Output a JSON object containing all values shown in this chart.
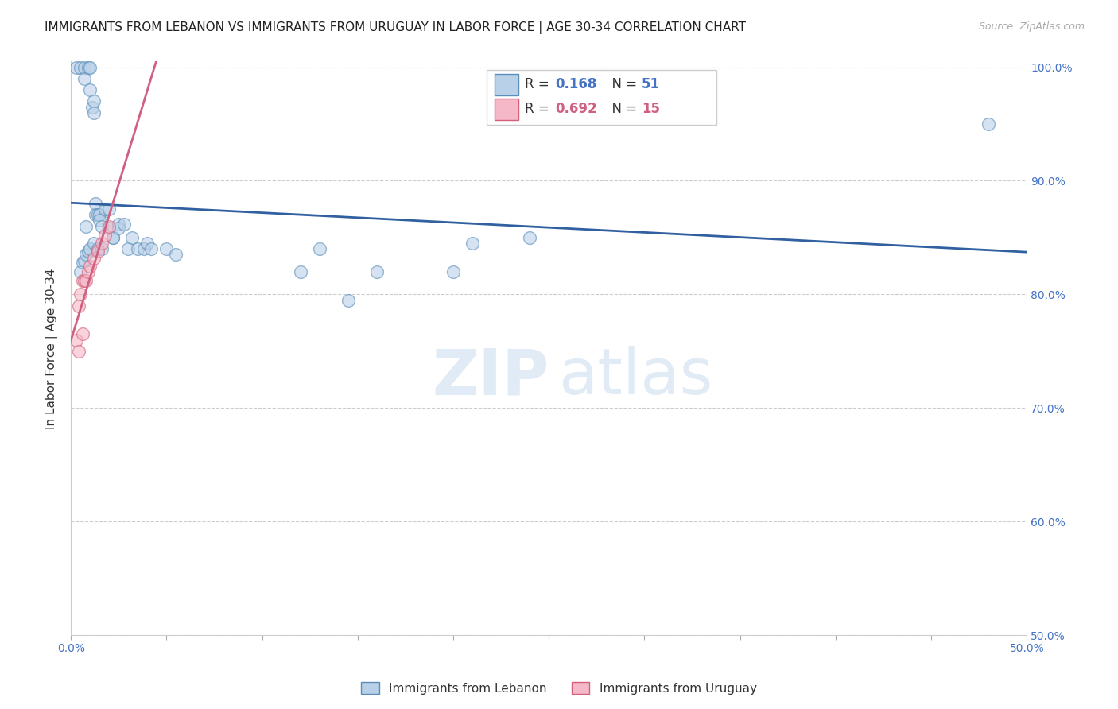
{
  "title": "IMMIGRANTS FROM LEBANON VS IMMIGRANTS FROM URUGUAY IN LABOR FORCE | AGE 30-34 CORRELATION CHART",
  "source": "Source: ZipAtlas.com",
  "ylabel": "In Labor Force | Age 30-34",
  "xlim": [
    0.0,
    0.5
  ],
  "ylim": [
    0.5,
    1.005
  ],
  "xticks": [
    0.0,
    0.05,
    0.1,
    0.15,
    0.2,
    0.25,
    0.3,
    0.35,
    0.4,
    0.45,
    0.5
  ],
  "xticklabels": [
    "0.0%",
    "",
    "",
    "",
    "",
    "",
    "",
    "",
    "",
    "",
    "50.0%"
  ],
  "yticks": [
    0.5,
    0.6,
    0.7,
    0.8,
    0.9,
    1.0
  ],
  "yticklabels": [
    "50.0%",
    "60.0%",
    "70.0%",
    "80.0%",
    "90.0%",
    "100.0%"
  ],
  "right_ytick_color": "#4472c4",
  "lebanon_color": "#b8d0e8",
  "lebanon_edge": "#5b8db8",
  "uruguay_color": "#f5b8c8",
  "uruguay_edge": "#d4607a",
  "lebanon_line_color": "#3060a0",
  "uruguay_line_color": "#d06080",
  "grid_color": "#cccccc",
  "background_color": "#ffffff",
  "title_fontsize": 11,
  "axis_label_fontsize": 11,
  "tick_fontsize": 10,
  "marker_size": 130,
  "marker_alpha": 0.6,
  "lebanon_x": [
    0.003,
    0.005,
    0.007,
    0.007,
    0.009,
    0.01,
    0.01,
    0.011,
    0.012,
    0.012,
    0.013,
    0.013,
    0.014,
    0.015,
    0.015,
    0.016,
    0.018,
    0.02,
    0.02,
    0.022,
    0.022,
    0.025,
    0.025,
    0.028,
    0.03,
    0.032,
    0.035,
    0.038,
    0.04,
    0.042,
    0.05,
    0.055,
    0.12,
    0.13,
    0.145,
    0.16,
    0.2,
    0.21,
    0.24,
    0.005,
    0.006,
    0.007,
    0.008,
    0.009,
    0.01,
    0.012,
    0.014,
    0.016,
    0.008,
    0.48
  ],
  "lebanon_y": [
    1.0,
    1.0,
    1.0,
    0.99,
    1.0,
    1.0,
    0.98,
    0.965,
    0.97,
    0.96,
    0.88,
    0.87,
    0.87,
    0.87,
    0.865,
    0.86,
    0.875,
    0.875,
    0.858,
    0.85,
    0.85,
    0.862,
    0.858,
    0.862,
    0.84,
    0.85,
    0.84,
    0.84,
    0.845,
    0.84,
    0.84,
    0.835,
    0.82,
    0.84,
    0.795,
    0.82,
    0.82,
    0.845,
    0.85,
    0.82,
    0.828,
    0.83,
    0.835,
    0.838,
    0.84,
    0.845,
    0.84,
    0.84,
    0.86,
    0.95
  ],
  "uruguay_x": [
    0.003,
    0.004,
    0.005,
    0.006,
    0.007,
    0.008,
    0.009,
    0.01,
    0.012,
    0.014,
    0.016,
    0.018,
    0.02,
    0.004,
    0.006
  ],
  "uruguay_y": [
    0.76,
    0.79,
    0.8,
    0.812,
    0.812,
    0.812,
    0.82,
    0.825,
    0.832,
    0.838,
    0.845,
    0.852,
    0.86,
    0.75,
    0.765
  ]
}
